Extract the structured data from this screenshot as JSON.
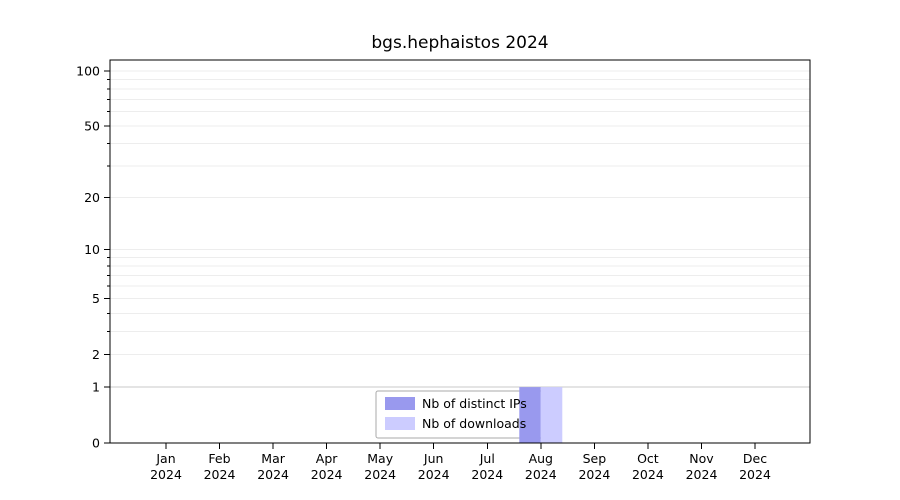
{
  "chart_data": {
    "type": "bar",
    "title": "bgs.hephaistos 2024",
    "categories": [
      "Jan",
      "Feb",
      "Mar",
      "Apr",
      "May",
      "Jun",
      "Jul",
      "Aug",
      "Sep",
      "Oct",
      "Nov",
      "Dec"
    ],
    "year_label": "2024",
    "series": [
      {
        "name": "Nb of distinct IPs",
        "color": "#9999ee",
        "values": [
          0,
          0,
          0,
          0,
          0,
          0,
          0,
          1,
          0,
          0,
          0,
          0
        ]
      },
      {
        "name": "Nb of downloads",
        "color": "#ccccff",
        "values": [
          0,
          0,
          0,
          0,
          0,
          0,
          0,
          1,
          0,
          0,
          0,
          0
        ]
      }
    ],
    "yticks": [
      0,
      1,
      2,
      5,
      10,
      20,
      50,
      100
    ],
    "minor_gridlines": [
      1,
      2,
      3,
      4,
      5,
      6,
      7,
      8,
      9,
      10,
      20,
      30,
      40,
      50,
      60,
      70,
      80,
      90,
      100
    ],
    "scale": "log1p",
    "ylim": [
      0,
      100
    ],
    "grid": "horizontal",
    "grid_color": "#ededed",
    "grid_color_unit": "#c9c9c9",
    "axis_color": "#000000",
    "legend_position": "bottom-center",
    "legend_border_color": "#aaaaaa"
  }
}
